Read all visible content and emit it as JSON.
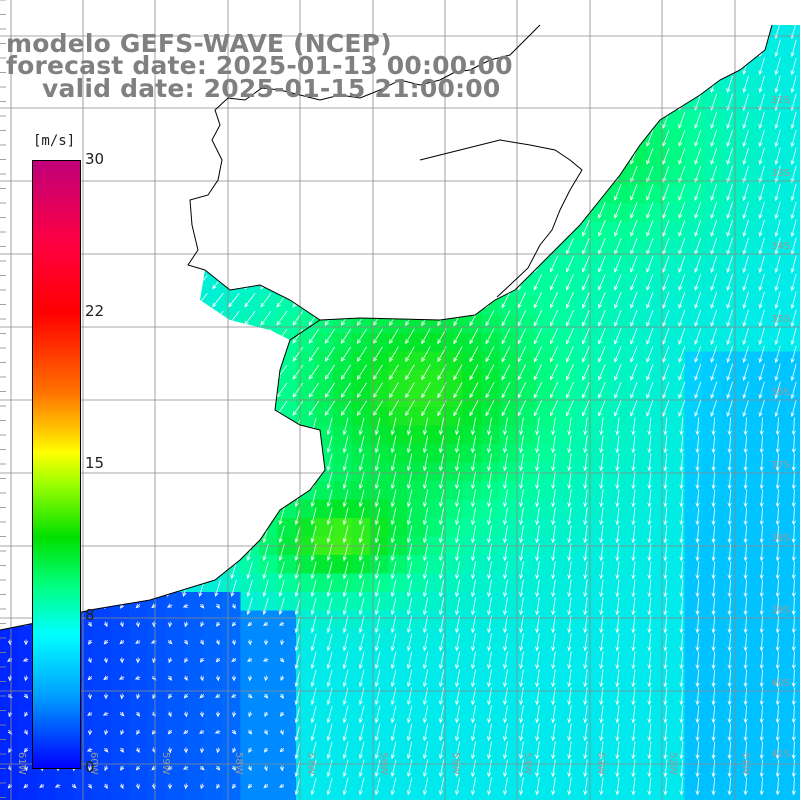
{
  "title": {
    "line1": "modelo GEFS-WAVE (NCEP)",
    "line2": "forecast date: 2025-01-13 00:00:00",
    "line3": "valid date: 2025-01-15 21:00:00"
  },
  "colorbar": {
    "unit": "[m/s]",
    "ticks": [
      "30",
      "22",
      "15",
      "8",
      "0"
    ],
    "range": [
      0,
      30
    ],
    "colors": [
      "#0000ff",
      "#00ffff",
      "#00e000",
      "#ffff00",
      "#ff0000",
      "#c0007a"
    ]
  },
  "lat_labels": [
    "32S",
    "33S",
    "34S",
    "35S",
    "36S",
    "37S",
    "38S",
    "39S",
    "40S",
    "41S"
  ],
  "lon_labels": [
    "61W",
    "60W",
    "59W",
    "58W",
    "57W",
    "56W",
    "55W",
    "54W",
    "53W",
    "52W",
    "51W"
  ],
  "colors": {
    "land": "#ffffff",
    "coast": "#000000",
    "grid": "#808080",
    "arrows": "#ffffff",
    "title": "#808080"
  }
}
